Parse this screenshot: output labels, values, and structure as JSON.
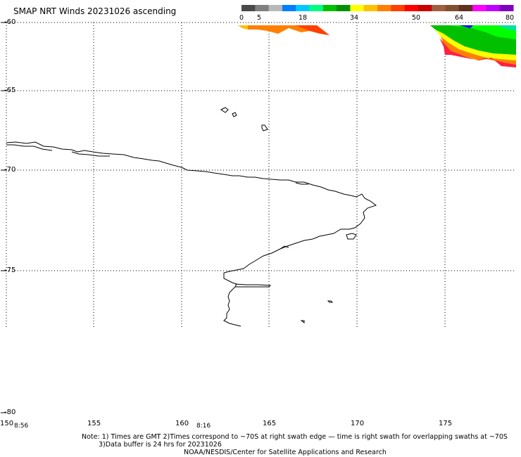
{
  "title": "SMAP NRT Winds 20231026 ascending",
  "colorbar": {
    "tick_labels": [
      "0",
      "5",
      "18",
      "34",
      "50",
      "64",
      "80"
    ],
    "colors": [
      "#4a4a4a",
      "#808080",
      "#b8b8b8",
      "#0080ff",
      "#00c8ff",
      "#00ff80",
      "#00c000",
      "#009000",
      "#ffff00",
      "#ffc000",
      "#ff8000",
      "#ff4000",
      "#ff0000",
      "#c80000",
      "#a06040",
      "#805030",
      "#603020",
      "#ff00ff",
      "#c000ff",
      "#8000c0"
    ]
  },
  "axes": {
    "lat_labels": [
      "-60",
      "-65",
      "-70",
      "-75",
      "-80"
    ],
    "lon_labels": [
      "150",
      "155",
      "160",
      "165",
      "170",
      "175"
    ]
  },
  "times": [
    "8:56",
    "8:16"
  ],
  "note_line1": "Note: 1) Times are GMT 2)Times correspond to ~70S at right swath edge — time is right swath for overlapping swaths at ~70S",
  "note_line2": "3)Data buffer is 24 hrs for 20231026",
  "credit": "NOAA/NESDIS/Center for Satellite Applications and Research",
  "colors": {
    "coastline": "#000000",
    "grid": "#000000",
    "swath_left": [
      "#ffc000",
      "#ff8000",
      "#ff4000",
      "#ff0000"
    ],
    "swath_right": [
      "#00c000",
      "#00ff00",
      "#ffff00",
      "#ff8000",
      "#ff2040",
      "#0000ff"
    ]
  }
}
